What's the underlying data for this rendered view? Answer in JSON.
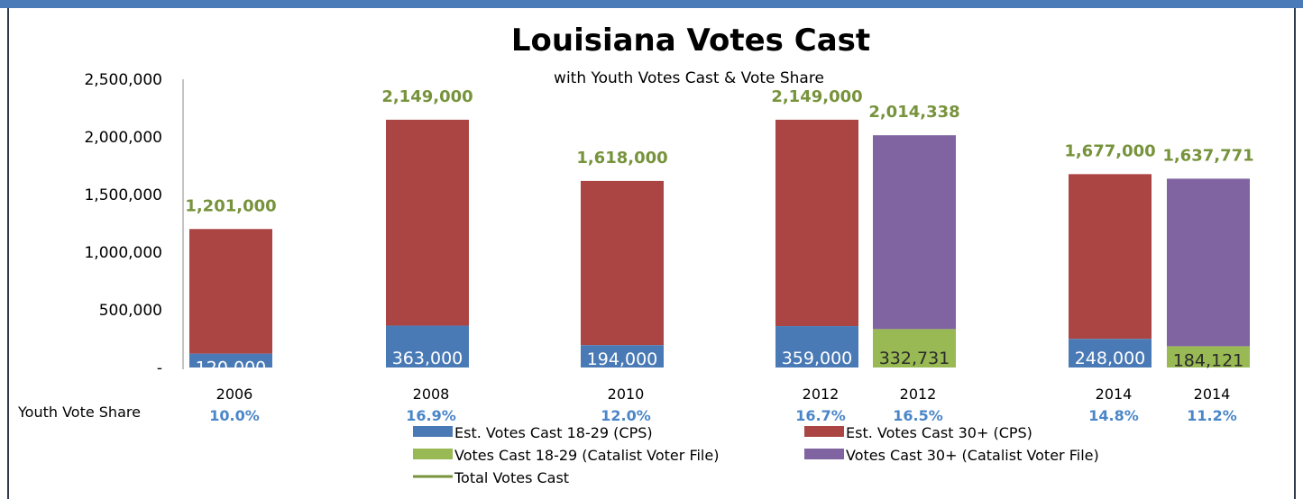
{
  "header": {
    "bar_color": "#4a7ab8"
  },
  "chart_data": {
    "type": "bar",
    "stacked": true,
    "title": "Louisiana Votes Cast",
    "subtitle": "with Youth Votes Cast & Vote Share",
    "ylim": [
      0,
      2500000
    ],
    "yticks": [
      "2,500,000",
      "2,000,000",
      "1,500,000",
      "1,000,000",
      "500,000",
      "-"
    ],
    "ytick_values": [
      2500000,
      2000000,
      1500000,
      1000000,
      500000,
      0
    ],
    "grid": false,
    "legend_placement": "bottom",
    "youth_share_label": "Youth Vote Share",
    "categories": [
      "2006",
      "2008",
      "2010",
      "2012",
      "2012",
      "2014",
      "2014"
    ],
    "source_type": [
      "cps",
      "cps",
      "cps",
      "cps",
      "catalist",
      "cps",
      "catalist"
    ],
    "young_values": [
      120000,
      363000,
      194000,
      359000,
      332731,
      248000,
      184121
    ],
    "young_labels": [
      "120,000",
      "363,000",
      "194,000",
      "359,000",
      "332,731",
      "248,000",
      "184,121"
    ],
    "total_values": [
      1201000,
      2149000,
      1618000,
      2149000,
      2014338,
      1677000,
      1637771
    ],
    "total_labels": [
      "1,201,000",
      "2,149,000",
      "1,618,000",
      "2,149,000",
      "2,014,338",
      "1,677,000",
      "1,637,771"
    ],
    "youth_share": [
      "10.0%",
      "16.9%",
      "12.0%",
      "16.7%",
      "16.5%",
      "14.8%",
      "11.2%"
    ],
    "series": [
      {
        "name": "Est. Votes Cast 18-29 (CPS)",
        "color": "#4a7ab5",
        "shape": "box"
      },
      {
        "name": "Est. Votes Cast 30+ (CPS)",
        "color": "#ab4543",
        "shape": "box"
      },
      {
        "name": "Votes Cast 18-29 (Catalist Voter File)",
        "color": "#98b954",
        "shape": "box"
      },
      {
        "name": "Votes Cast 30+ (Catalist Voter File)",
        "color": "#8064a2",
        "shape": "box"
      },
      {
        "name": "Total Votes Cast",
        "color": "#77933c",
        "shape": "line"
      }
    ],
    "colors": {
      "total_label": "#77933c",
      "share_label": "#4a86c8",
      "young_label": "#ffffff",
      "axis_text": "#000000"
    }
  }
}
